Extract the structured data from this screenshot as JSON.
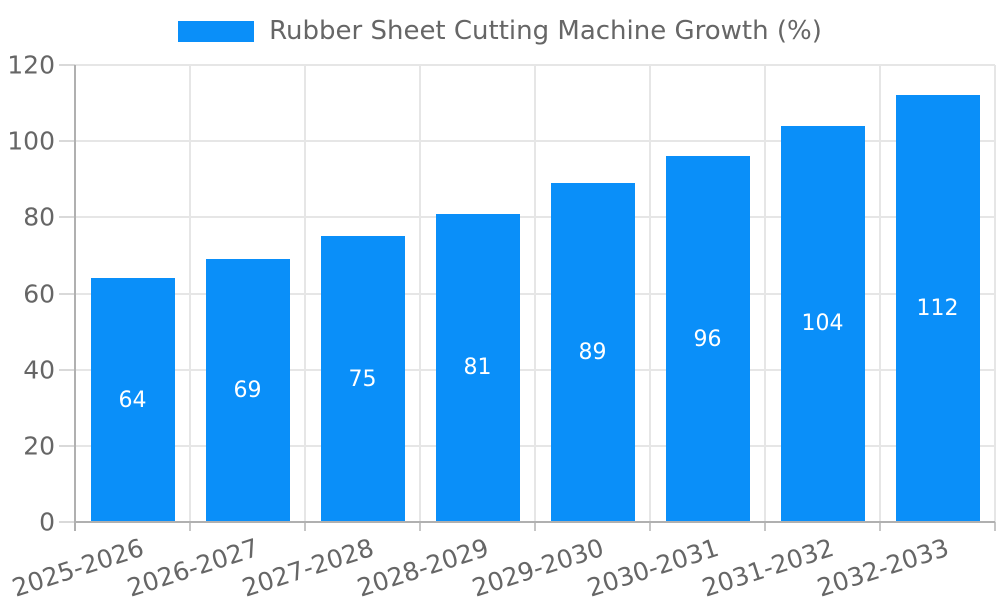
{
  "chart_data": {
    "type": "bar",
    "title": "Rubber Sheet Cutting Machine Growth (%)",
    "categories": [
      "2025-2026",
      "2026-2027",
      "2027-2028",
      "2028-2029",
      "2029-2030",
      "2030-2031",
      "2031-2032",
      "2032-2033"
    ],
    "values": [
      64,
      69,
      75,
      81,
      89,
      96,
      104,
      112
    ],
    "xlabel": "",
    "ylabel": "",
    "ylim": [
      0,
      120
    ],
    "yticks": [
      0,
      20,
      40,
      60,
      80,
      100,
      120
    ],
    "grid": true,
    "legend_position": "top",
    "bar_color": "#0a8ff9",
    "bar_label_color": "#ffffff",
    "axis_text_color": "#666666",
    "grid_color": "#e6e6e6",
    "tick_color": "#d9d9d9",
    "axis_line_color": "#b0b0b0"
  }
}
